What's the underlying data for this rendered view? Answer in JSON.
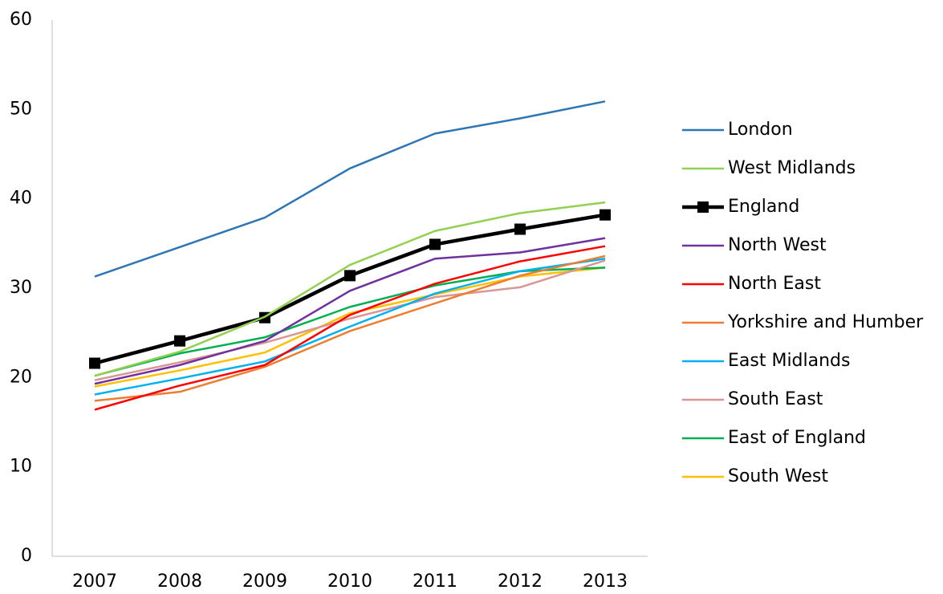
{
  "chart_data": {
    "type": "line",
    "categories": [
      "2007",
      "2008",
      "2009",
      "2010",
      "2011",
      "2012",
      "2013"
    ],
    "ylim": [
      0,
      60
    ],
    "yticks": [
      0,
      10,
      20,
      30,
      40,
      50,
      60
    ],
    "grid": false,
    "legend": "right",
    "series": [
      {
        "name": "London",
        "color": "#2e75b6",
        "values": [
          31.3,
          34.6,
          37.9,
          43.4,
          47.3,
          49.0,
          50.9
        ]
      },
      {
        "name": "West Midlands",
        "color": "#92d050",
        "values": [
          20.2,
          22.9,
          26.8,
          32.6,
          36.4,
          38.4,
          39.6
        ]
      },
      {
        "name": "England",
        "color": "#000000",
        "marker": "square",
        "values": [
          21.6,
          24.1,
          26.7,
          31.4,
          34.9,
          36.6,
          38.2
        ]
      },
      {
        "name": "North West",
        "color": "#7030a0",
        "values": [
          19.3,
          21.4,
          24.1,
          29.7,
          33.3,
          34.0,
          35.6
        ]
      },
      {
        "name": "North East",
        "color": "#ff0000",
        "values": [
          16.4,
          19.1,
          21.4,
          27.0,
          30.5,
          33.0,
          34.7
        ]
      },
      {
        "name": "Yorkshire and Humber",
        "color": "#ed7d31",
        "values": [
          17.4,
          18.4,
          21.2,
          25.2,
          28.3,
          31.4,
          33.6
        ]
      },
      {
        "name": "East Midlands",
        "color": "#00b0f0",
        "values": [
          18.1,
          19.9,
          21.8,
          25.7,
          29.4,
          31.9,
          33.3
        ]
      },
      {
        "name": "South East",
        "color": "#d99694",
        "values": [
          19.7,
          21.7,
          23.9,
          26.6,
          29.0,
          30.1,
          33.1
        ]
      },
      {
        "name": "East of England",
        "color": "#00b050",
        "values": [
          20.2,
          22.7,
          24.5,
          27.9,
          30.3,
          31.9,
          32.3
        ]
      },
      {
        "name": "South West",
        "color": "#ffc000",
        "values": [
          19.0,
          20.8,
          22.8,
          27.2,
          29.3,
          31.3,
          32.3
        ]
      }
    ]
  }
}
